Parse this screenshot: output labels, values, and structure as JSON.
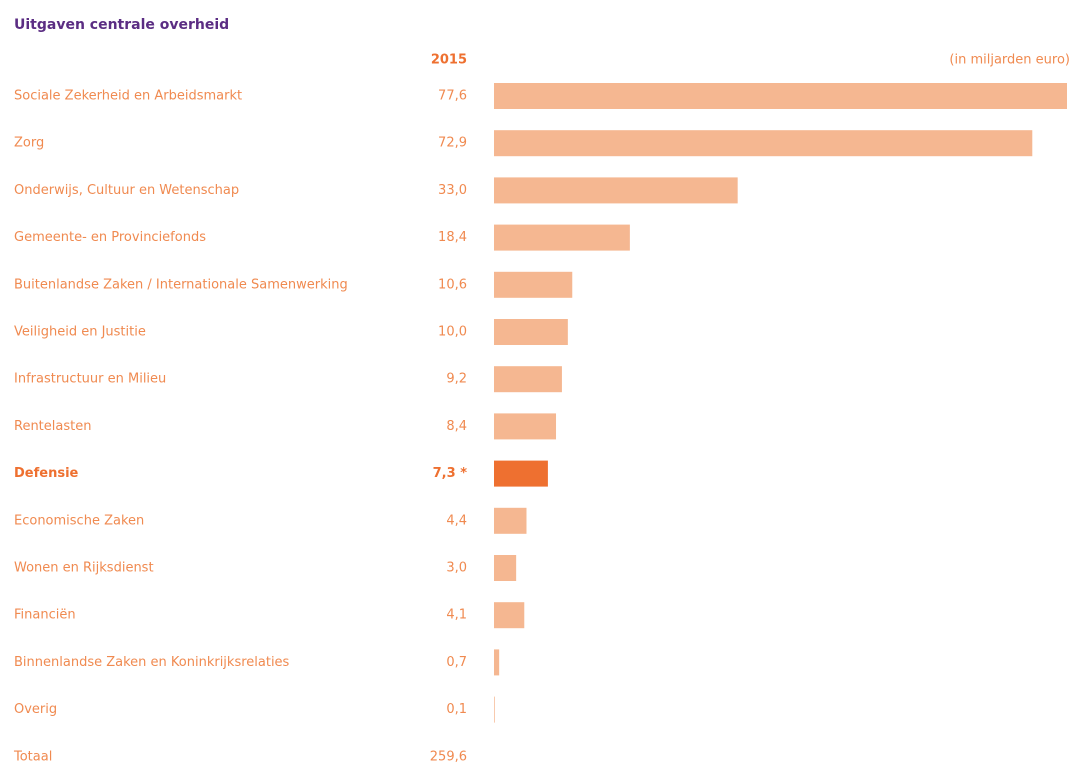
{
  "chart_data": {
    "type": "bar",
    "title": "Uitgaven centrale overheid",
    "column_header": "2015",
    "unit": "(in miljarden euro)",
    "categories": [
      "Sociale Zekerheid en Arbeidsmarkt",
      "Zorg",
      "Onderwijs, Cultuur en Wetenschap",
      "Gemeente- en Provinciefonds",
      "Buitenlandse Zaken / Internationale Samenwerking",
      "Veiligheid en Justitie",
      "Infrastructuur en Milieu",
      "Rentelasten",
      "Defensie",
      "Economische Zaken",
      "Wonen en Rijksdienst",
      "Financiën",
      "Binnenlandse Zaken en Koninkrijksrelaties",
      "Overig"
    ],
    "values": [
      77.6,
      72.9,
      33.0,
      18.4,
      10.6,
      10.0,
      9.2,
      8.4,
      7.3,
      4.4,
      3.0,
      4.1,
      0.7,
      0.1
    ],
    "value_labels": [
      "77,6",
      "72,9",
      "33,0",
      "18,4",
      "10,6",
      "10,0",
      "9,2",
      "8,4",
      "7,3 *",
      "4,4",
      "3,0",
      "4,1",
      "0,7",
      "0,1"
    ],
    "color": "#f5b791",
    "colors": [
      "#f5b791",
      "#f5b791",
      "#f5b791",
      "#f5b791",
      "#f5b791",
      "#f5b791",
      "#f5b791",
      "#f5b791",
      "#ee7030",
      "#f5b791",
      "#f5b791",
      "#f5b791",
      "#f5b791",
      "#f5b791"
    ],
    "total": {
      "label": "Totaal",
      "value": 259.6,
      "value_label": "259,6"
    }
  }
}
